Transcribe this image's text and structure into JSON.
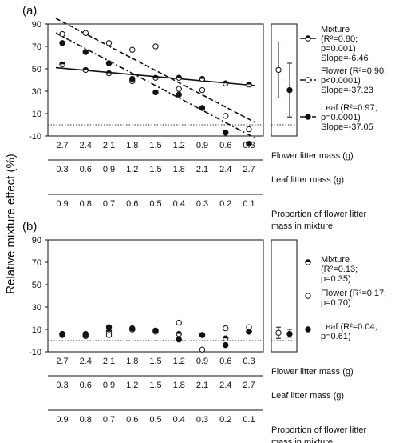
{
  "y_axis_label": "Relative mixture effect (%)",
  "chart_data": [
    {
      "panel_label": "(a)",
      "type": "scatter",
      "ylim": [
        -10,
        90
      ],
      "yticks": [
        -10,
        10,
        30,
        50,
        70,
        90
      ],
      "x_axes": [
        {
          "label": "Flower litter mass (g)",
          "ticks": [
            "2.7",
            "2.4",
            "2.1",
            "1.8",
            "1.5",
            "1.2",
            "0.9",
            "0.6",
            "0.3"
          ]
        },
        {
          "label": "Leaf litter mass (g)",
          "ticks": [
            "0.3",
            "0.6",
            "0.9",
            "1.2",
            "1.5",
            "1.8",
            "2.1",
            "2.4",
            "2.7"
          ]
        },
        {
          "label_lines": [
            "Proportion of flower litter",
            "mass in mixture"
          ],
          "ticks": [
            "0.9",
            "0.8",
            "0.7",
            "0.6",
            "0.5",
            "0.4",
            "0.3",
            "0.2",
            "0.1"
          ]
        }
      ],
      "x": [
        2.7,
        2.4,
        2.1,
        1.8,
        1.5,
        1.2,
        0.9,
        0.6,
        0.3
      ],
      "series": [
        {
          "name": "Mixture",
          "marker": "half-filled",
          "line": "solid",
          "values": [
            54,
            49,
            46,
            39,
            42,
            42,
            41,
            37,
            36
          ],
          "fit": [
            51,
            35
          ],
          "legend": [
            "Mixture",
            "(R²=0.80;",
            "p=0.001)",
            "Slope=-6.46"
          ]
        },
        {
          "name": "Flower",
          "marker": "open",
          "line": "dashed",
          "values": [
            81,
            82,
            73,
            67,
            70,
            32,
            31,
            8,
            -4
          ],
          "fit": [
            95,
            2
          ],
          "legend": [
            "Flower (R²=0.90;",
            "p<0.0001)",
            "Slope=-37.23"
          ]
        },
        {
          "name": "Leaf",
          "marker": "filled",
          "line": "dash-dot",
          "values": [
            73,
            65,
            55,
            41,
            29,
            27,
            15,
            -7,
            -17
          ],
          "fit": [
            82,
            -12
          ],
          "legend": [
            "Leaf (R²=0.97;",
            "p=0.0001)",
            "Slope=-37.05"
          ]
        }
      ],
      "side_means": [
        {
          "marker": "open",
          "mean": 49,
          "low": 24,
          "high": 74
        },
        {
          "marker": "filled",
          "mean": 31,
          "low": 7,
          "high": 55
        }
      ]
    },
    {
      "panel_label": "(b)",
      "type": "scatter",
      "ylim": [
        -10,
        90
      ],
      "yticks": [
        -10,
        10,
        30,
        50,
        70,
        90
      ],
      "x_axes": [
        {
          "label": "Flower litter mass (g)",
          "ticks": [
            "2.7",
            "2.4",
            "2.1",
            "1.8",
            "1.5",
            "1.2",
            "0.9",
            "0.6",
            "0.3"
          ]
        },
        {
          "label": "Leaf litter mass (g)",
          "ticks": [
            "0.3",
            "0.6",
            "0.9",
            "1.2",
            "1.5",
            "1.8",
            "2.1",
            "2.4",
            "2.7"
          ]
        },
        {
          "label_lines": [
            "Proportion of flower litter",
            "mass in mixture"
          ],
          "ticks": [
            "0.9",
            "0.8",
            "0.7",
            "0.6",
            "0.5",
            "0.4",
            "0.3",
            "0.2",
            "0.1"
          ]
        }
      ],
      "x": [
        2.7,
        2.4,
        2.1,
        1.8,
        1.5,
        1.2,
        0.9,
        0.6,
        0.3
      ],
      "series": [
        {
          "name": "Mixture",
          "marker": "half-filled",
          "values": [
            6,
            6,
            8,
            10,
            9,
            6,
            5,
            2,
            8
          ],
          "legend": [
            "Mixture",
            "(R²=0.13;",
            "p=0.35)"
          ]
        },
        {
          "name": "Flower",
          "marker": "open",
          "values": [
            5,
            4,
            5,
            10,
            8,
            16,
            -8,
            11,
            12
          ],
          "legend": [
            "Flower (R²=0.17;",
            "p=0.70)"
          ]
        },
        {
          "name": "Leaf",
          "marker": "filled",
          "values": [
            6,
            5,
            12,
            11,
            9,
            1,
            5,
            -4,
            8
          ],
          "legend": [
            "Leaf (R²=0.04;",
            "p=0.61)"
          ]
        }
      ],
      "side_means": [
        {
          "marker": "open",
          "mean": 7,
          "low": 2,
          "high": 12
        },
        {
          "marker": "filled",
          "mean": 6,
          "low": 3,
          "high": 10
        }
      ]
    }
  ]
}
